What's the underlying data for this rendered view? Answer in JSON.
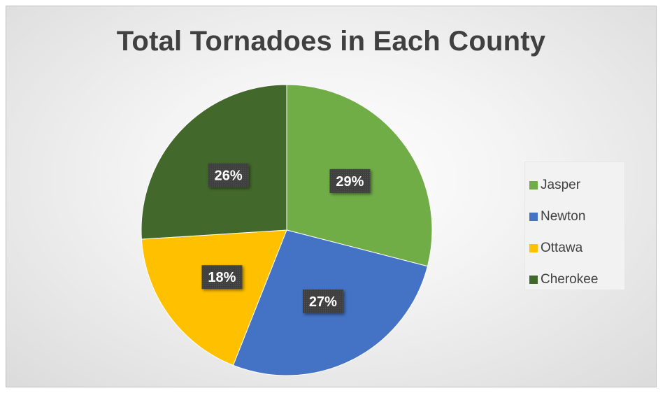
{
  "chart_data": {
    "type": "pie",
    "title": "Total Tornadoes in Each County",
    "categories": [
      "Jasper",
      "Newton",
      "Ottawa",
      "Cherokee"
    ],
    "values": [
      29,
      27,
      18,
      26
    ],
    "data_labels": [
      "29%",
      "27%",
      "18%",
      "26%"
    ],
    "colors": [
      "#70AD47",
      "#4472C4",
      "#FFC000",
      "#43682B"
    ],
    "legend_position": "right"
  }
}
